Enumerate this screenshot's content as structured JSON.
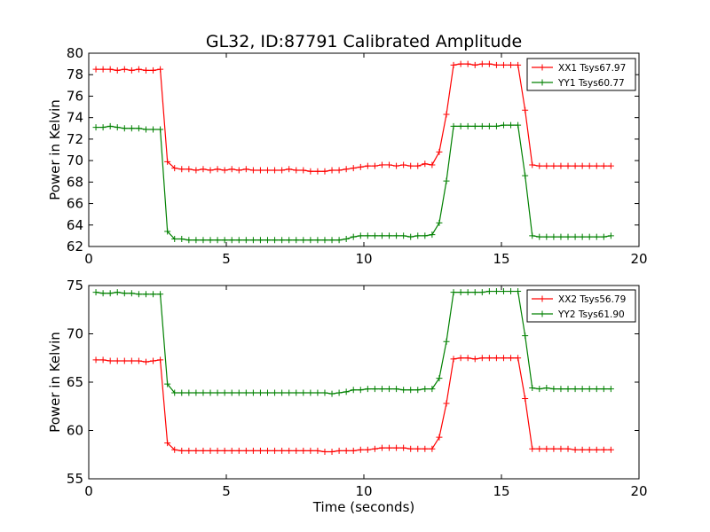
{
  "title": "GL32, ID:87791 Calibrated Amplitude",
  "chart_data": [
    {
      "type": "line",
      "xlabel": "",
      "ylabel": "Power in Kelvin",
      "xlim": [
        0,
        20
      ],
      "ylim": [
        62,
        80
      ],
      "xticks": [
        0,
        5,
        10,
        15,
        20
      ],
      "yticks": [
        62,
        64,
        66,
        68,
        70,
        72,
        74,
        76,
        78,
        80
      ],
      "grid": false,
      "legend_position": "top-right",
      "x": [
        0.26,
        0.52,
        0.78,
        1.04,
        1.3,
        1.56,
        1.82,
        2.08,
        2.34,
        2.6,
        2.86,
        3.12,
        3.38,
        3.64,
        3.9,
        4.16,
        4.42,
        4.68,
        4.94,
        5.2,
        5.46,
        5.72,
        5.98,
        6.24,
        6.5,
        6.76,
        7.02,
        7.28,
        7.54,
        7.8,
        8.06,
        8.32,
        8.58,
        8.84,
        9.1,
        9.36,
        9.62,
        9.88,
        10.14,
        10.4,
        10.66,
        10.92,
        11.18,
        11.44,
        11.7,
        11.96,
        12.22,
        12.48,
        12.74,
        13.0,
        13.26,
        13.52,
        13.78,
        14.04,
        14.3,
        14.56,
        14.82,
        15.08,
        15.34,
        15.6,
        15.86,
        16.12,
        16.38,
        16.64,
        16.9,
        17.16,
        17.42,
        17.68,
        17.94,
        18.2,
        18.46,
        18.72,
        18.98
      ],
      "series": [
        {
          "name": "XX1 Tsys67.97",
          "color": "#ff0000",
          "values": [
            78.5,
            78.5,
            78.5,
            78.4,
            78.5,
            78.4,
            78.5,
            78.4,
            78.4,
            78.5,
            69.9,
            69.3,
            69.2,
            69.2,
            69.1,
            69.2,
            69.1,
            69.2,
            69.1,
            69.2,
            69.1,
            69.2,
            69.1,
            69.1,
            69.1,
            69.1,
            69.1,
            69.2,
            69.1,
            69.1,
            69.0,
            69.0,
            69.0,
            69.1,
            69.1,
            69.2,
            69.3,
            69.4,
            69.5,
            69.5,
            69.6,
            69.6,
            69.5,
            69.6,
            69.5,
            69.5,
            69.7,
            69.6,
            70.8,
            74.3,
            78.9,
            79.0,
            79.0,
            78.9,
            79.0,
            79.0,
            78.9,
            78.9,
            78.9,
            78.9,
            74.7,
            69.6,
            69.5,
            69.5,
            69.5,
            69.5,
            69.5,
            69.5,
            69.5,
            69.5,
            69.5,
            69.5,
            69.5
          ]
        },
        {
          "name": "YY1 Tsys60.77",
          "color": "#008000",
          "values": [
            73.1,
            73.1,
            73.2,
            73.1,
            73.0,
            73.0,
            73.0,
            72.9,
            72.9,
            72.9,
            63.4,
            62.7,
            62.7,
            62.6,
            62.6,
            62.6,
            62.6,
            62.6,
            62.6,
            62.6,
            62.6,
            62.6,
            62.6,
            62.6,
            62.6,
            62.6,
            62.6,
            62.6,
            62.6,
            62.6,
            62.6,
            62.6,
            62.6,
            62.6,
            62.6,
            62.7,
            62.9,
            63.0,
            63.0,
            63.0,
            63.0,
            63.0,
            63.0,
            63.0,
            62.9,
            63.0,
            63.0,
            63.1,
            64.2,
            68.1,
            73.2,
            73.2,
            73.2,
            73.2,
            73.2,
            73.2,
            73.2,
            73.3,
            73.3,
            73.3,
            68.6,
            63.0,
            62.9,
            62.9,
            62.9,
            62.9,
            62.9,
            62.9,
            62.9,
            62.9,
            62.9,
            62.9,
            63.0
          ]
        }
      ]
    },
    {
      "type": "line",
      "xlabel": "Time (seconds)",
      "ylabel": "Power in Kelvin",
      "xlim": [
        0,
        20
      ],
      "ylim": [
        55,
        75
      ],
      "xticks": [
        0,
        5,
        10,
        15,
        20
      ],
      "yticks": [
        55,
        60,
        65,
        70,
        75
      ],
      "grid": false,
      "legend_position": "top-right",
      "x": [
        0.26,
        0.52,
        0.78,
        1.04,
        1.3,
        1.56,
        1.82,
        2.08,
        2.34,
        2.6,
        2.86,
        3.12,
        3.38,
        3.64,
        3.9,
        4.16,
        4.42,
        4.68,
        4.94,
        5.2,
        5.46,
        5.72,
        5.98,
        6.24,
        6.5,
        6.76,
        7.02,
        7.28,
        7.54,
        7.8,
        8.06,
        8.32,
        8.58,
        8.84,
        9.1,
        9.36,
        9.62,
        9.88,
        10.14,
        10.4,
        10.66,
        10.92,
        11.18,
        11.44,
        11.7,
        11.96,
        12.22,
        12.48,
        12.74,
        13.0,
        13.26,
        13.52,
        13.78,
        14.04,
        14.3,
        14.56,
        14.82,
        15.08,
        15.34,
        15.6,
        15.86,
        16.12,
        16.38,
        16.64,
        16.9,
        17.16,
        17.42,
        17.68,
        17.94,
        18.2,
        18.46,
        18.72,
        18.98
      ],
      "series": [
        {
          "name": "XX2 Tsys56.79",
          "color": "#ff0000",
          "values": [
            67.3,
            67.3,
            67.2,
            67.2,
            67.2,
            67.2,
            67.2,
            67.1,
            67.2,
            67.3,
            58.7,
            58.0,
            57.9,
            57.9,
            57.9,
            57.9,
            57.9,
            57.9,
            57.9,
            57.9,
            57.9,
            57.9,
            57.9,
            57.9,
            57.9,
            57.9,
            57.9,
            57.9,
            57.9,
            57.9,
            57.9,
            57.9,
            57.8,
            57.8,
            57.9,
            57.9,
            57.9,
            58.0,
            58.0,
            58.1,
            58.2,
            58.2,
            58.2,
            58.2,
            58.1,
            58.1,
            58.1,
            58.1,
            59.3,
            62.8,
            67.4,
            67.5,
            67.5,
            67.4,
            67.5,
            67.5,
            67.5,
            67.5,
            67.5,
            67.5,
            63.3,
            58.1,
            58.1,
            58.1,
            58.1,
            58.1,
            58.1,
            58.0,
            58.0,
            58.0,
            58.0,
            58.0,
            58.0
          ]
        },
        {
          "name": "YY2 Tsys61.90",
          "color": "#008000",
          "values": [
            74.3,
            74.2,
            74.2,
            74.3,
            74.2,
            74.2,
            74.1,
            74.1,
            74.1,
            74.1,
            64.8,
            63.9,
            63.9,
            63.9,
            63.9,
            63.9,
            63.9,
            63.9,
            63.9,
            63.9,
            63.9,
            63.9,
            63.9,
            63.9,
            63.9,
            63.9,
            63.9,
            63.9,
            63.9,
            63.9,
            63.9,
            63.9,
            63.9,
            63.8,
            63.9,
            64.0,
            64.2,
            64.2,
            64.3,
            64.3,
            64.3,
            64.3,
            64.3,
            64.2,
            64.2,
            64.2,
            64.3,
            64.3,
            65.4,
            69.2,
            74.3,
            74.3,
            74.3,
            74.3,
            74.3,
            74.4,
            74.4,
            74.4,
            74.4,
            74.4,
            69.8,
            64.4,
            64.3,
            64.4,
            64.3,
            64.3,
            64.3,
            64.3,
            64.3,
            64.3,
            64.3,
            64.3,
            64.3
          ]
        }
      ]
    }
  ]
}
